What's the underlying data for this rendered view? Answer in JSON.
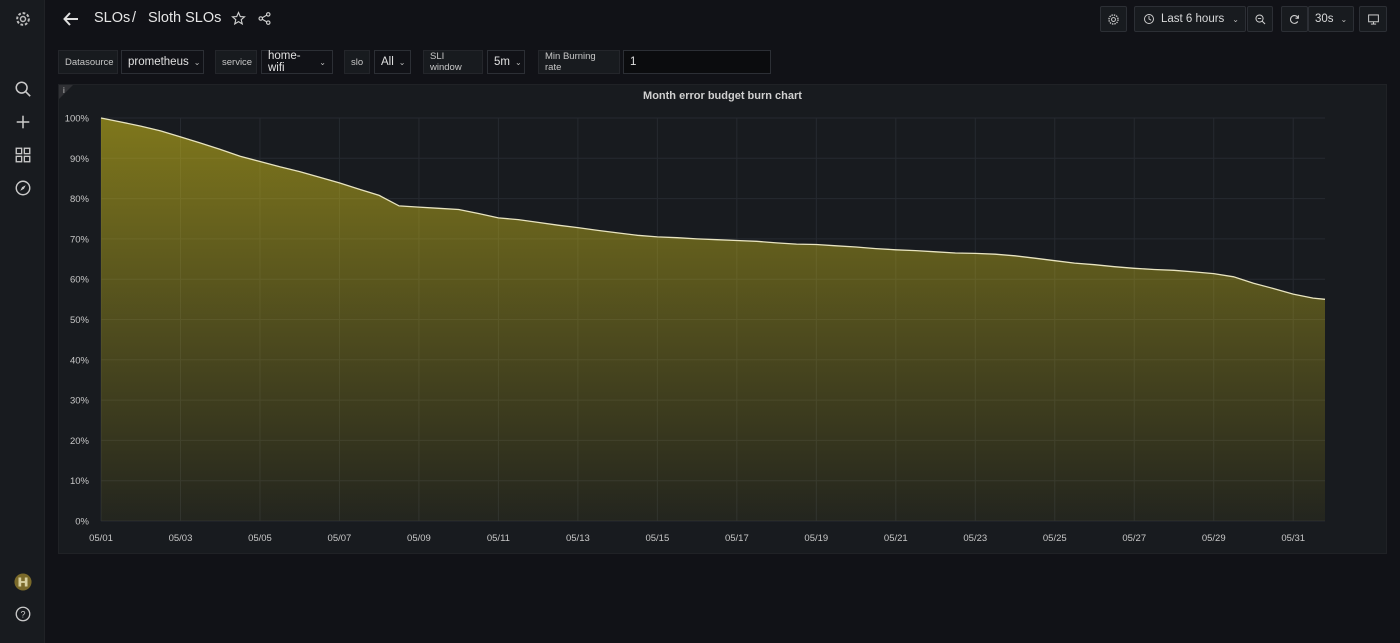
{
  "breadcrumb": {
    "folder": "SLOs",
    "separator": "/",
    "dashboard": "Sloth SLOs"
  },
  "time_picker": {
    "label": "Last 6 hours"
  },
  "refresh": {
    "interval": "30s"
  },
  "variables": [
    {
      "label": "Datasource",
      "value": "prometheus"
    },
    {
      "label": "service",
      "value": "home-wifi"
    },
    {
      "label": "slo",
      "value": "All"
    },
    {
      "label": "SLI window",
      "value": "5m"
    },
    {
      "label": "Min Burning rate",
      "value": "1"
    }
  ],
  "panel": {
    "title": "Month error budget burn chart",
    "info": "i"
  },
  "colors": {
    "fill": "#d4c31a",
    "line": "#e8e4c0",
    "grid": "#262a30",
    "background": "#111217",
    "panel": "#181b1f"
  },
  "chart_data": {
    "type": "area",
    "title": "Month error budget burn chart",
    "xlabel": "",
    "ylabel": "",
    "x_ticks": [
      "05/01",
      "05/03",
      "05/05",
      "05/07",
      "05/09",
      "05/11",
      "05/13",
      "05/15",
      "05/17",
      "05/19",
      "05/21",
      "05/23",
      "05/25",
      "05/27",
      "05/29",
      "05/31"
    ],
    "y_ticks": [
      "0%",
      "10%",
      "20%",
      "30%",
      "40%",
      "50%",
      "60%",
      "70%",
      "80%",
      "90%",
      "100%"
    ],
    "ylim": [
      0,
      100
    ],
    "xlim": [
      1,
      31.8
    ],
    "grid": true,
    "legend": "none",
    "series": [
      {
        "x": [
          1,
          1.5,
          2,
          2.5,
          3,
          3.5,
          4,
          4.5,
          5,
          5.5,
          6,
          6.5,
          7,
          7.5,
          8,
          8.5,
          9,
          9.5,
          10,
          10.5,
          11,
          11.5,
          12,
          12.5,
          13,
          13.5,
          14,
          14.5,
          15,
          15.5,
          16,
          16.5,
          17,
          17.5,
          18,
          18.5,
          19,
          19.5,
          20,
          20.5,
          21,
          21.5,
          22,
          22.5,
          23,
          23.5,
          24,
          24.5,
          25,
          25.5,
          26,
          26.5,
          27,
          27.5,
          28,
          28.5,
          29,
          29.5,
          30,
          30.5,
          31,
          31.5,
          31.8
        ],
        "y": [
          100,
          99.0,
          98.0,
          96.8,
          95.3,
          93.8,
          92.2,
          90.5,
          89.2,
          87.9,
          86.7,
          85.3,
          83.9,
          82.3,
          80.8,
          78.2,
          77.9,
          77.6,
          77.3,
          76.3,
          75.2,
          74.8,
          74.1,
          73.4,
          72.8,
          72.1,
          71.5,
          70.9,
          70.5,
          70.3,
          70.0,
          69.8,
          69.6,
          69.4,
          69.0,
          68.7,
          68.6,
          68.3,
          68.0,
          67.6,
          67.3,
          67.1,
          66.8,
          66.5,
          66.4,
          66.2,
          65.8,
          65.2,
          64.6,
          64.0,
          63.6,
          63.1,
          62.7,
          62.4,
          62.2,
          61.8,
          61.4,
          60.6,
          59.0,
          57.7,
          56.3,
          55.3,
          55.0
        ]
      }
    ]
  }
}
